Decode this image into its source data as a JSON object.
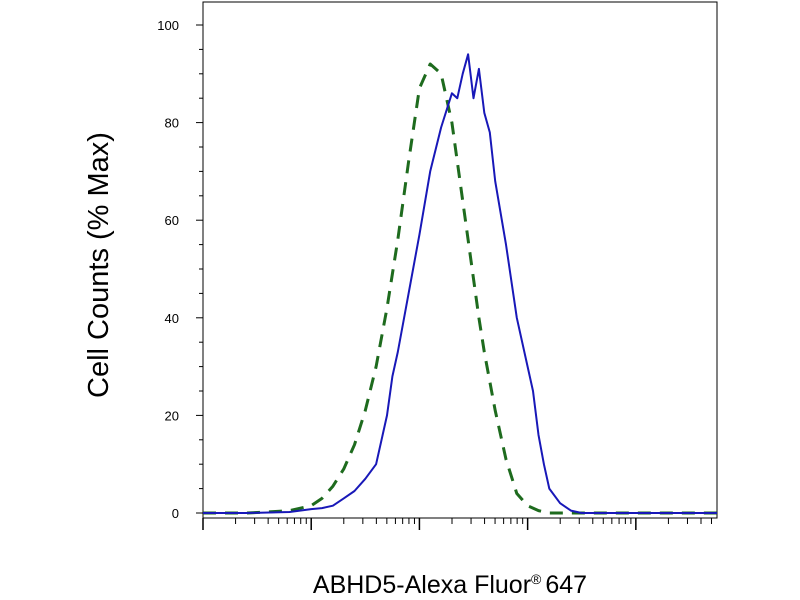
{
  "chart_data": {
    "type": "line",
    "title": "",
    "xlabel": "ABHD5-Alexa Fluor",
    "xlabel_superscript": "®",
    "xlabel_suffix": "647",
    "ylabel": "Cell Counts (% Max)",
    "x_scale": "log",
    "x_log_decades": [
      0,
      4.75
    ],
    "ylim": [
      0,
      100
    ],
    "yticks": [
      "0",
      "20",
      "40",
      "60",
      "80",
      "100"
    ],
    "grid": false,
    "legend": "none",
    "series": [
      {
        "line_style": "dashed",
        "color": "#1e6b1e",
        "x": [
          0,
          0.2,
          0.4,
          0.6,
          0.8,
          1.0,
          1.1,
          1.2,
          1.3,
          1.4,
          1.5,
          1.6,
          1.7,
          1.8,
          1.9,
          2.0,
          2.1,
          2.2,
          2.3,
          2.35,
          2.4,
          2.45,
          2.5,
          2.55,
          2.6,
          2.7,
          2.8,
          2.9,
          3.0,
          3.1,
          3.2,
          3.3,
          3.5,
          4.0,
          4.75
        ],
        "y": [
          0,
          0,
          0,
          0.2,
          0.5,
          1.5,
          3,
          5.5,
          9,
          14,
          21,
          30,
          42,
          56,
          72,
          87,
          92,
          90,
          80,
          72,
          64,
          56,
          48,
          40,
          33,
          21,
          11,
          4,
          1.5,
          0.5,
          0,
          0,
          0,
          0,
          0
        ]
      },
      {
        "line_style": "solid",
        "color": "#1818b8",
        "x": [
          0,
          0.4,
          0.8,
          1.0,
          1.1,
          1.2,
          1.3,
          1.4,
          1.5,
          1.6,
          1.7,
          1.75,
          1.8,
          1.9,
          2.0,
          2.1,
          2.2,
          2.3,
          2.35,
          2.4,
          2.45,
          2.5,
          2.55,
          2.6,
          2.65,
          2.7,
          2.8,
          2.9,
          3.0,
          3.05,
          3.1,
          3.15,
          3.2,
          3.3,
          3.4,
          3.5,
          3.6,
          4.0,
          4.75
        ],
        "y": [
          0,
          0,
          0.2,
          0.8,
          1,
          1.5,
          3,
          4.5,
          7,
          10,
          20,
          28,
          33,
          45,
          57,
          70,
          79,
          86,
          85,
          90,
          94,
          85,
          91,
          82,
          78,
          68,
          55,
          40,
          30,
          25,
          16,
          10,
          5,
          2,
          0.5,
          0,
          0,
          0,
          0
        ]
      }
    ]
  }
}
